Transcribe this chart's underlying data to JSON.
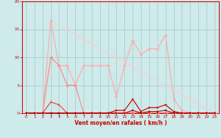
{
  "title": "",
  "xlabel": "Vent moyen/en rafales ( km/h )",
  "ylabel": "",
  "bg_color": "#ceeaea",
  "grid_color": "#aacccc",
  "xlim": [
    -0.5,
    23.5
  ],
  "ylim": [
    0,
    20
  ],
  "yticks": [
    0,
    5,
    10,
    15,
    20
  ],
  "xticks": [
    0,
    1,
    2,
    3,
    4,
    5,
    6,
    7,
    8,
    9,
    10,
    11,
    12,
    13,
    14,
    15,
    16,
    17,
    18,
    19,
    20,
    21,
    22,
    23
  ],
  "series": [
    {
      "x": [
        0,
        1,
        2,
        3,
        4,
        5,
        6,
        7,
        8,
        9,
        10,
        11,
        12,
        13,
        14,
        15,
        16,
        17,
        18,
        19,
        20,
        21,
        22,
        23
      ],
      "y": [
        0,
        0,
        0,
        16.5,
        8.5,
        8.5,
        5,
        8.5,
        8.5,
        8.5,
        8.5,
        3,
        8.5,
        13,
        10.5,
        11.5,
        11.5,
        14,
        2.5,
        0.5,
        0,
        0,
        0,
        0
      ],
      "color": "#ffaaaa",
      "linewidth": 0.9,
      "marker": "D",
      "markersize": 2.0
    },
    {
      "x": [
        0,
        1,
        2,
        3,
        4,
        5,
        6,
        7,
        8,
        9,
        10,
        11,
        12,
        13,
        14,
        15,
        16,
        17,
        18,
        19,
        20,
        21,
        22,
        23
      ],
      "y": [
        0,
        0,
        0,
        10,
        8.5,
        5,
        5,
        0,
        0,
        0,
        0,
        0,
        0,
        0,
        0,
        0,
        0,
        0,
        0,
        0,
        0,
        0,
        0,
        0
      ],
      "color": "#ff8888",
      "linewidth": 0.9,
      "marker": "D",
      "markersize": 2.0
    },
    {
      "x": [
        0,
        1,
        2,
        3,
        4,
        5,
        6,
        7,
        8,
        9,
        10,
        11,
        12,
        13,
        14,
        15,
        16,
        17,
        18,
        19,
        20,
        21,
        22,
        23
      ],
      "y": [
        0,
        0,
        0,
        2,
        1.5,
        0,
        0,
        0,
        0,
        0,
        0,
        0,
        0,
        0,
        0,
        0,
        0,
        0,
        0,
        0,
        0,
        0,
        0,
        0
      ],
      "color": "#ee4444",
      "linewidth": 0.9,
      "marker": "s",
      "markersize": 2.0
    },
    {
      "x": [
        0,
        1,
        2,
        3,
        4,
        5,
        6,
        7,
        8,
        9,
        10,
        11,
        12,
        13,
        14,
        15,
        16,
        17,
        18,
        19,
        20,
        21,
        22,
        23
      ],
      "y": [
        0,
        0,
        0,
        0,
        0,
        0,
        0,
        0,
        0,
        0,
        0,
        0.5,
        0.5,
        2.5,
        0.3,
        1,
        1,
        1.5,
        0.3,
        0,
        0,
        0,
        0,
        0
      ],
      "color": "#cc0000",
      "linewidth": 0.9,
      "marker": "s",
      "markersize": 2.0
    },
    {
      "x": [
        0,
        1,
        2,
        3,
        4,
        5,
        6,
        7,
        8,
        9,
        10,
        11,
        12,
        13,
        14,
        15,
        16,
        17,
        18,
        19,
        20,
        21,
        22,
        23
      ],
      "y": [
        0,
        0,
        0,
        0,
        0,
        0,
        0,
        0,
        0,
        0,
        0,
        0,
        0,
        0.5,
        0,
        0.3,
        0.3,
        0.5,
        0,
        0,
        0,
        0,
        0,
        0
      ],
      "color": "#990000",
      "linewidth": 0.8,
      "marker": "s",
      "markersize": 1.5
    }
  ],
  "diag_line": {
    "x": [
      3,
      23
    ],
    "y": [
      16.5,
      0
    ],
    "color": "#ffcccc",
    "linewidth": 0.9
  }
}
